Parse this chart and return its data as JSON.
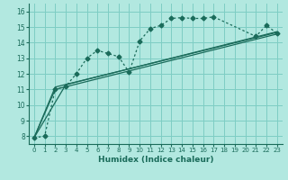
{
  "xlabel": "Humidex (Indice chaleur)",
  "background_color": "#b2e8e0",
  "grid_color": "#7ecdc4",
  "line_color": "#1a6b5a",
  "xlim": [
    -0.5,
    23.5
  ],
  "ylim": [
    7.5,
    16.5
  ],
  "xticks": [
    0,
    1,
    2,
    3,
    4,
    5,
    6,
    7,
    8,
    9,
    10,
    11,
    12,
    13,
    14,
    15,
    16,
    17,
    18,
    19,
    20,
    21,
    22,
    23
  ],
  "yticks": [
    8,
    9,
    10,
    11,
    12,
    13,
    14,
    15,
    16
  ],
  "series_dotted": {
    "x": [
      0,
      1,
      2,
      3,
      4,
      5,
      6,
      7,
      8,
      9,
      10,
      11,
      12,
      13,
      14,
      15,
      16,
      17,
      21,
      22,
      23
    ],
    "y": [
      7.9,
      8.0,
      11.0,
      11.2,
      12.0,
      13.0,
      13.5,
      13.3,
      13.1,
      12.1,
      14.1,
      14.9,
      15.1,
      15.55,
      15.6,
      15.55,
      15.55,
      15.65,
      14.4,
      15.1,
      14.6
    ]
  },
  "series_straight": [
    {
      "x": [
        0,
        2,
        23
      ],
      "y": [
        7.9,
        11.0,
        14.55
      ]
    },
    {
      "x": [
        0,
        2,
        23
      ],
      "y": [
        7.9,
        11.15,
        14.65
      ]
    },
    {
      "x": [
        0,
        3,
        23
      ],
      "y": [
        7.9,
        11.3,
        14.7
      ]
    }
  ]
}
